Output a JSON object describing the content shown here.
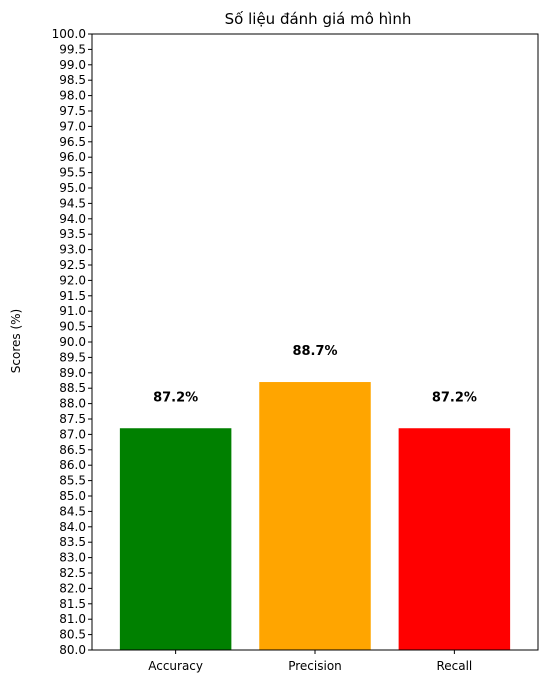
{
  "chart_data": {
    "type": "bar",
    "title": "Số liệu đánh giá mô hình",
    "xlabel": "",
    "ylabel": "Scores (%)",
    "categories": [
      "Accuracy",
      "Precision",
      "Recall"
    ],
    "values": [
      87.2,
      88.7,
      87.2
    ],
    "data_labels": [
      "87.2%",
      "88.7%",
      "87.2%"
    ],
    "colors": [
      "#008000",
      "#ffa500",
      "#ff0000"
    ],
    "ylim": [
      80.0,
      100.0
    ],
    "ytick_step": 0.5,
    "grid": false,
    "legend": "none"
  }
}
